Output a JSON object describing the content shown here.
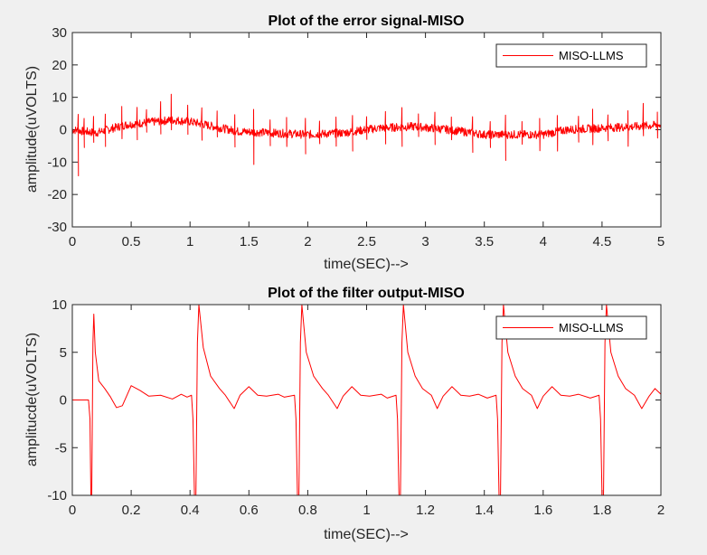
{
  "chart_data": [
    {
      "type": "line",
      "title": "Plot of the error signal-MISO",
      "xlabel": "time(SEC)-->",
      "ylabel": "amplitude(uVOLTS)",
      "xlim": [
        0,
        5
      ],
      "ylim": [
        -30,
        30
      ],
      "xticks": [
        0,
        0.5,
        1,
        1.5,
        2,
        2.5,
        3,
        3.5,
        4,
        4.5,
        5
      ],
      "xtick_labels": [
        "0",
        "0.5",
        "1",
        "1.5",
        "2",
        "2.5",
        "3",
        "3.5",
        "4",
        "4.5",
        "5"
      ],
      "yticks": [
        -30,
        -20,
        -10,
        0,
        10,
        20,
        30
      ],
      "ytick_labels": [
        "-30",
        "-20",
        "-10",
        "0",
        "10",
        "20",
        "30"
      ],
      "grid": false,
      "legend": "top-right",
      "series": [
        {
          "name": "MISO-LLMS",
          "color": "#ff0000",
          "baseline": [
            [
              0,
              0
            ],
            [
              0.2,
              -1
            ],
            [
              0.45,
              1.5
            ],
            [
              0.7,
              2.5
            ],
            [
              0.85,
              3
            ],
            [
              1.0,
              2.5
            ],
            [
              1.2,
              1
            ],
            [
              1.4,
              -0.5
            ],
            [
              1.7,
              -1
            ],
            [
              2.0,
              -1.5
            ],
            [
              2.3,
              -1
            ],
            [
              2.6,
              0.5
            ],
            [
              2.9,
              1
            ],
            [
              3.2,
              0
            ],
            [
              3.5,
              -1.5
            ],
            [
              3.8,
              -1.5
            ],
            [
              4.0,
              -1.5
            ],
            [
              4.2,
              0
            ],
            [
              4.5,
              0.5
            ],
            [
              4.8,
              1
            ],
            [
              5.0,
              1.5
            ]
          ],
          "spikes": [
            {
              "x": 0.05,
              "hi": 5,
              "lo": -14
            },
            {
              "x": 0.1,
              "hi": 4,
              "lo": -5
            },
            {
              "x": 0.18,
              "hi": 5,
              "lo": -3
            },
            {
              "x": 0.28,
              "hi": 5,
              "lo": -5
            },
            {
              "x": 0.42,
              "hi": 6,
              "lo": -4
            },
            {
              "x": 0.55,
              "hi": 5,
              "lo": -5
            },
            {
              "x": 0.63,
              "hi": 4,
              "lo": -3
            },
            {
              "x": 0.75,
              "hi": 6,
              "lo": -4
            },
            {
              "x": 0.84,
              "hi": 8,
              "lo": -3
            },
            {
              "x": 0.98,
              "hi": 5,
              "lo": -4
            },
            {
              "x": 1.1,
              "hi": 5,
              "lo": -5
            },
            {
              "x": 1.23,
              "hi": 5,
              "lo": -3
            },
            {
              "x": 1.38,
              "hi": 5,
              "lo": -5
            },
            {
              "x": 1.54,
              "hi": 7,
              "lo": -10
            },
            {
              "x": 1.68,
              "hi": 4,
              "lo": -4
            },
            {
              "x": 1.82,
              "hi": 5,
              "lo": -4
            },
            {
              "x": 1.98,
              "hi": 5,
              "lo": -6
            },
            {
              "x": 2.1,
              "hi": 4,
              "lo": -3
            },
            {
              "x": 2.24,
              "hi": 5,
              "lo": -4
            },
            {
              "x": 2.38,
              "hi": 5,
              "lo": -6
            },
            {
              "x": 2.5,
              "hi": 4,
              "lo": -3
            },
            {
              "x": 2.66,
              "hi": 5,
              "lo": -5
            },
            {
              "x": 2.8,
              "hi": 6,
              "lo": -6
            },
            {
              "x": 2.94,
              "hi": 4,
              "lo": -3
            },
            {
              "x": 3.08,
              "hi": 5,
              "lo": -5
            },
            {
              "x": 3.22,
              "hi": 4,
              "lo": -3
            },
            {
              "x": 3.4,
              "hi": 5,
              "lo": -6
            },
            {
              "x": 3.55,
              "hi": 4,
              "lo": -4
            },
            {
              "x": 3.68,
              "hi": 6,
              "lo": -8
            },
            {
              "x": 3.82,
              "hi": 4,
              "lo": -3
            },
            {
              "x": 3.97,
              "hi": 5,
              "lo": -5
            },
            {
              "x": 4.12,
              "hi": 5,
              "lo": -6
            },
            {
              "x": 4.3,
              "hi": 4,
              "lo": -4
            },
            {
              "x": 4.42,
              "hi": 6,
              "lo": -5
            },
            {
              "x": 4.55,
              "hi": 4,
              "lo": -4
            },
            {
              "x": 4.72,
              "hi": 5,
              "lo": -6
            },
            {
              "x": 4.85,
              "hi": 7,
              "lo": -3
            },
            {
              "x": 4.97,
              "hi": 4,
              "lo": -4
            }
          ]
        }
      ]
    },
    {
      "type": "line",
      "title": "Plot of the filter output-MISO",
      "xlabel": "time(SEC)-->",
      "ylabel": "amplitucde(uVOLTS)",
      "xlim": [
        0,
        2
      ],
      "ylim": [
        -10,
        10
      ],
      "xticks": [
        0,
        0.2,
        0.4,
        0.6,
        0.8,
        1,
        1.2,
        1.4,
        1.6,
        1.8,
        2
      ],
      "xtick_labels": [
        "0",
        "0.2",
        "0.4",
        "0.6",
        "0.8",
        "1",
        "1.2",
        "1.4",
        "1.6",
        "1.8",
        "2"
      ],
      "yticks": [
        -10,
        -5,
        0,
        5,
        10
      ],
      "ytick_labels": [
        "-10",
        "-5",
        "0",
        "5",
        "10"
      ],
      "grid": false,
      "legend": "top-right",
      "series": [
        {
          "name": "MISO-LLMS",
          "color": "#ff0000",
          "beats": [
            0.068,
            0.425,
            0.775,
            1.12,
            1.46,
            1.81
          ],
          "beat_peaks": [
            9,
            10,
            10,
            10,
            10,
            10
          ],
          "points": [
            [
              0,
              0
            ],
            [
              0.055,
              0
            ],
            [
              0.06,
              -2
            ],
            [
              0.063,
              -10
            ],
            [
              0.066,
              -10
            ],
            [
              0.07,
              6
            ],
            [
              0.073,
              9
            ],
            [
              0.078,
              5
            ],
            [
              0.09,
              2
            ],
            [
              0.11,
              1.2
            ],
            [
              0.13,
              0.3
            ],
            [
              0.15,
              -0.8
            ],
            [
              0.17,
              -0.6
            ],
            [
              0.2,
              1.5
            ],
            [
              0.23,
              1
            ],
            [
              0.26,
              0.4
            ],
            [
              0.3,
              0.5
            ],
            [
              0.34,
              0.1
            ],
            [
              0.37,
              0.6
            ],
            [
              0.39,
              0.3
            ],
            [
              0.405,
              0.5
            ],
            [
              0.41,
              -2
            ],
            [
              0.415,
              -10
            ],
            [
              0.42,
              -10
            ],
            [
              0.425,
              6
            ],
            [
              0.43,
              10
            ],
            [
              0.445,
              5.5
            ],
            [
              0.47,
              2.5
            ],
            [
              0.5,
              1.2
            ],
            [
              0.52,
              0.5
            ],
            [
              0.55,
              -0.9
            ],
            [
              0.57,
              0.5
            ],
            [
              0.6,
              1.4
            ],
            [
              0.63,
              0.5
            ],
            [
              0.66,
              0.4
            ],
            [
              0.7,
              0.6
            ],
            [
              0.72,
              0.3
            ],
            [
              0.755,
              0.5
            ],
            [
              0.76,
              -2
            ],
            [
              0.765,
              -10
            ],
            [
              0.77,
              -10
            ],
            [
              0.775,
              6
            ],
            [
              0.78,
              10
            ],
            [
              0.795,
              5
            ],
            [
              0.82,
              2.5
            ],
            [
              0.85,
              1.2
            ],
            [
              0.87,
              0.5
            ],
            [
              0.9,
              -0.9
            ],
            [
              0.92,
              0.4
            ],
            [
              0.95,
              1.4
            ],
            [
              0.98,
              0.5
            ],
            [
              1.01,
              0.4
            ],
            [
              1.05,
              0.6
            ],
            [
              1.07,
              0.2
            ],
            [
              1.1,
              0.5
            ],
            [
              1.105,
              -2
            ],
            [
              1.11,
              -10
            ],
            [
              1.115,
              -10
            ],
            [
              1.12,
              6
            ],
            [
              1.125,
              10
            ],
            [
              1.14,
              5
            ],
            [
              1.165,
              2.5
            ],
            [
              1.19,
              1.2
            ],
            [
              1.22,
              0.5
            ],
            [
              1.24,
              -0.9
            ],
            [
              1.26,
              0.4
            ],
            [
              1.29,
              1.4
            ],
            [
              1.32,
              0.5
            ],
            [
              1.35,
              0.4
            ],
            [
              1.38,
              0.6
            ],
            [
              1.41,
              0.2
            ],
            [
              1.44,
              0.5
            ],
            [
              1.445,
              -2
            ],
            [
              1.45,
              -10
            ],
            [
              1.455,
              -10
            ],
            [
              1.46,
              6
            ],
            [
              1.465,
              10
            ],
            [
              1.48,
              5
            ],
            [
              1.505,
              2.5
            ],
            [
              1.53,
              1.2
            ],
            [
              1.56,
              0.5
            ],
            [
              1.58,
              -0.9
            ],
            [
              1.6,
              0.4
            ],
            [
              1.63,
              1.4
            ],
            [
              1.66,
              0.5
            ],
            [
              1.69,
              0.4
            ],
            [
              1.72,
              0.6
            ],
            [
              1.76,
              0.2
            ],
            [
              1.79,
              0.5
            ],
            [
              1.795,
              -2
            ],
            [
              1.8,
              -10
            ],
            [
              1.805,
              -10
            ],
            [
              1.81,
              6
            ],
            [
              1.815,
              10
            ],
            [
              1.83,
              5
            ],
            [
              1.855,
              2.5
            ],
            [
              1.88,
              1.2
            ],
            [
              1.91,
              0.5
            ],
            [
              1.935,
              -0.9
            ],
            [
              1.96,
              0.4
            ],
            [
              1.98,
              1.2
            ],
            [
              2.0,
              0.6
            ]
          ]
        }
      ]
    }
  ]
}
